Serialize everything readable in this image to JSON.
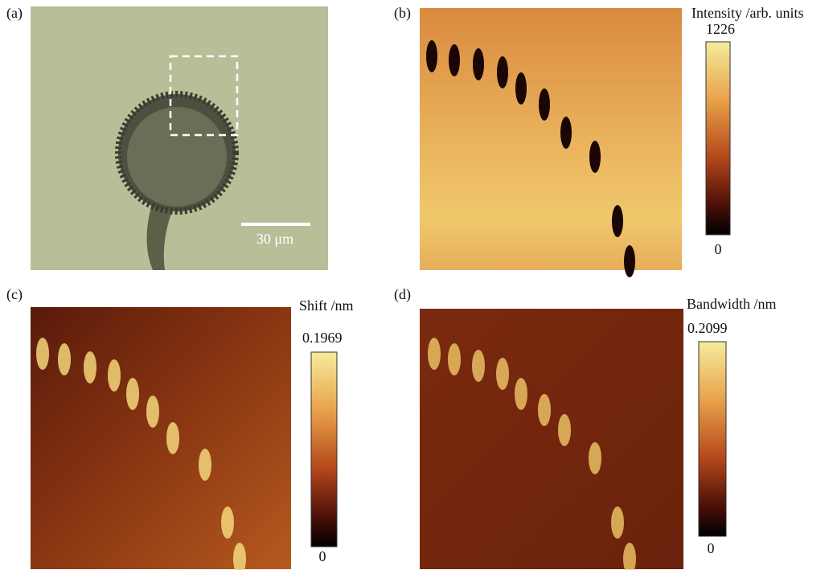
{
  "panels": [
    {
      "label": "(a)",
      "scale_bar": "30 μm"
    },
    {
      "label": "(b)",
      "colorbar": {
        "title": "Intensity /arb. units",
        "max": 1226,
        "min": 0
      }
    },
    {
      "label": "(c)",
      "colorbar": {
        "title": "Shift /nm",
        "max": 0.1969,
        "min": 0
      }
    },
    {
      "label": "(d)",
      "colorbar": {
        "title": "Bandwidth /nm",
        "max": 0.2099,
        "min": 0
      }
    }
  ]
}
